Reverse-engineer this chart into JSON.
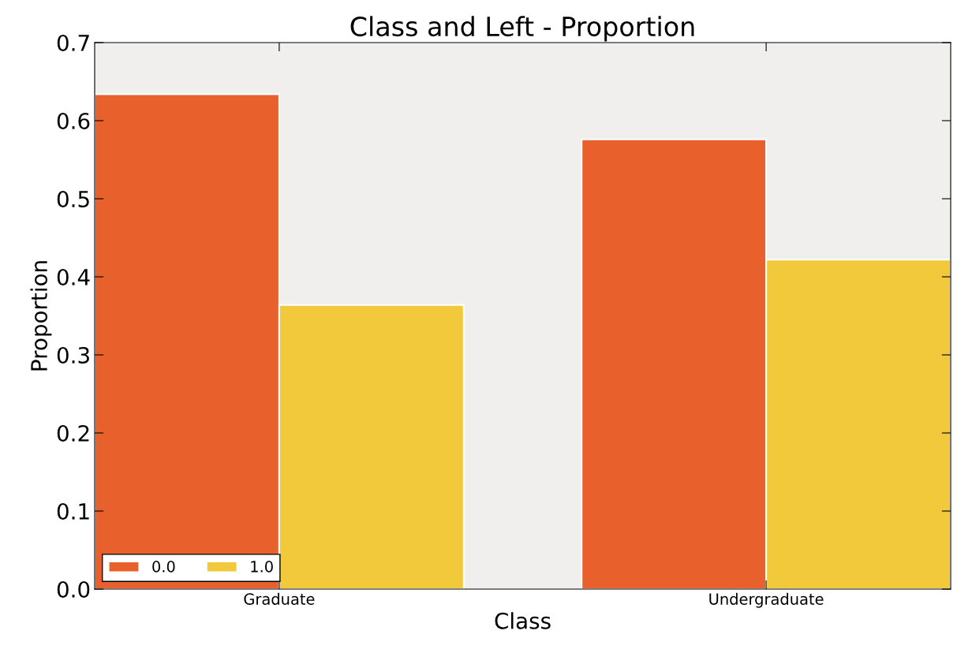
{
  "chart_data": {
    "type": "bar",
    "title": "Class and Left - Proportion",
    "xlabel": "Class",
    "ylabel": "Proportion",
    "categories": [
      "Graduate",
      "Undergraduate"
    ],
    "series": [
      {
        "name": "0.0",
        "color": "#e8602c",
        "values": [
          0.634,
          0.576
        ]
      },
      {
        "name": "1.0",
        "color": "#f2c93b",
        "values": [
          0.364,
          0.422
        ]
      }
    ],
    "ylim": [
      0,
      0.7
    ],
    "yticks": [
      {
        "value": 0,
        "label": "0.0"
      },
      0.1,
      0.2,
      0.3,
      0.4,
      0.5,
      0.6,
      0.7
    ],
    "grid": false,
    "legend": "bottom left"
  }
}
